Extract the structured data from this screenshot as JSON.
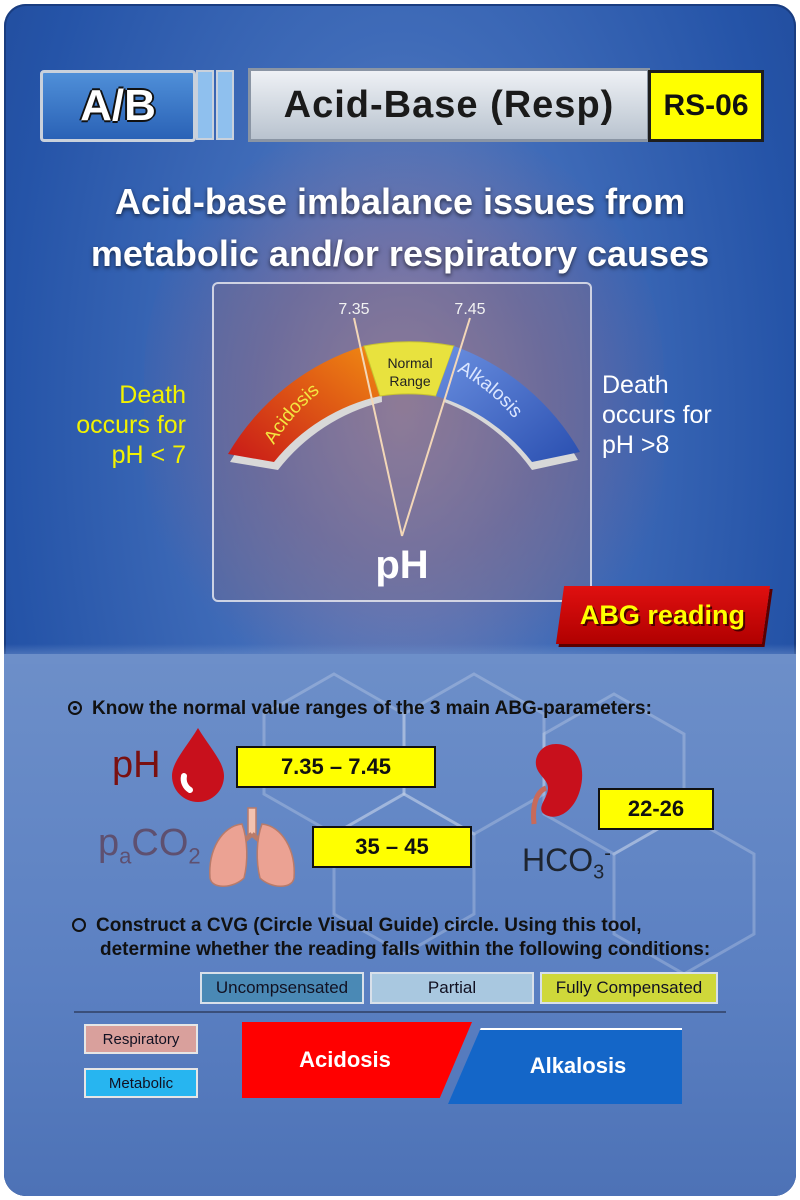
{
  "header": {
    "code_left": "A/B",
    "title": "Acid-Base (Resp)",
    "code_right": "RS-06"
  },
  "subtitle": {
    "line1": "Acid-base imbalance issues from",
    "line2": "metabolic and/or respiratory causes"
  },
  "gauge": {
    "low_threshold": "7.35",
    "high_threshold": "7.45",
    "acid_label": "Acidosis",
    "normal_label_1": "Normal",
    "normal_label_2": "Range",
    "alk_label": "Alkalosis",
    "axis_label": "pH",
    "colors": {
      "acid": "#d81e1e",
      "normal": "#e6e23c",
      "alkaline": "#2f5fbf"
    }
  },
  "side_notes": {
    "left": [
      "Death",
      "occurs for",
      "pH < 7"
    ],
    "right": [
      "Death",
      "occurs for",
      "pH >8"
    ]
  },
  "abg_tag": "ABG reading",
  "section1": {
    "bullet": "Know the normal value ranges of the 3 main ABG-parameters:",
    "ph_label": "pH",
    "ph_value": "7.35 – 7.45",
    "paco2_p": "p",
    "paco2_sub": "a",
    "paco2_co": "CO",
    "paco2_2": "2",
    "paco2_value": "35 – 45",
    "hco3_base": "HCO",
    "hco3_sub": "3",
    "hco3_sup": "-",
    "hco3_value": "22-26",
    "icons": [
      "blood-drop-icon",
      "lungs-icon",
      "kidney-icon"
    ]
  },
  "section2": {
    "bullet_line1": "Construct a CVG (Circle Visual Guide) circle. Using this tool,",
    "bullet_line2": "determine whether the reading falls within the following conditions:",
    "chips": [
      "Uncompsensated",
      "Partial",
      "Fully Compensated"
    ],
    "chip_colors": [
      "#4a89b5",
      "#a9c8e0",
      "#cfd83a"
    ],
    "types": [
      "Respiratory",
      "Metabolic"
    ],
    "type_colors": [
      "#d9a09c",
      "#27b5f0"
    ],
    "acidosis": "Acidosis",
    "alkalosis": "Alkalosis"
  }
}
